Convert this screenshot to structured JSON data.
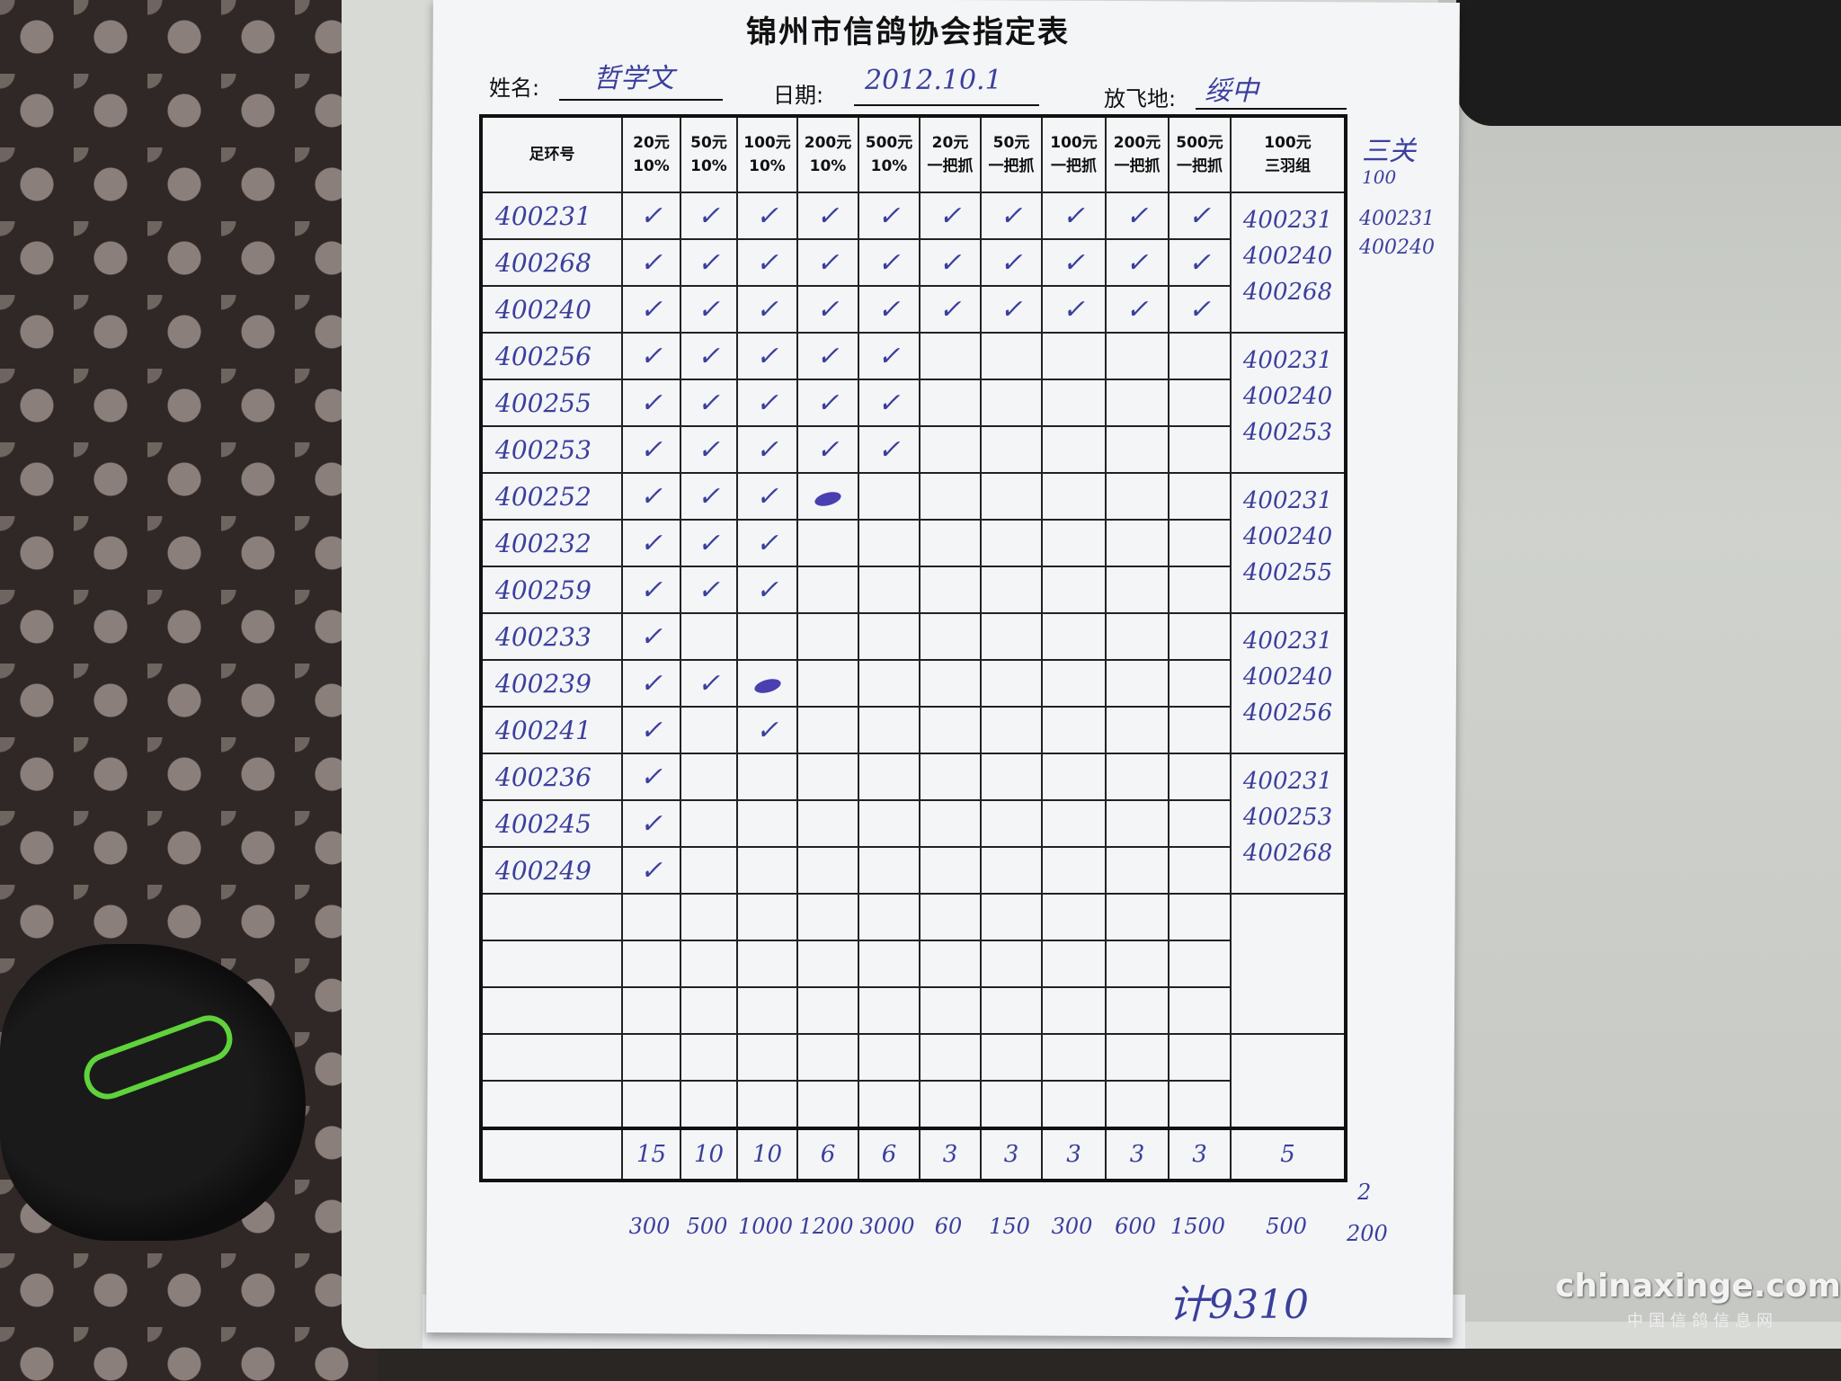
{
  "form": {
    "title": "锦州市信鸽协会指定表",
    "name_label": "姓名:",
    "name_value": "哲学文",
    "date_label": "日期:",
    "date_value": "2012.10.1",
    "release_label": "放飞地:",
    "release_value": "绥中"
  },
  "headers": [
    {
      "line1": "足环号",
      "line2": ""
    },
    {
      "line1": "20元",
      "line2": "10%"
    },
    {
      "line1": "50元",
      "line2": "10%"
    },
    {
      "line1": "100元",
      "line2": "10%"
    },
    {
      "line1": "200元",
      "line2": "10%"
    },
    {
      "line1": "500元",
      "line2": "10%"
    },
    {
      "line1": "20元",
      "line2": "一把抓"
    },
    {
      "line1": "50元",
      "line2": "一把抓"
    },
    {
      "line1": "100元",
      "line2": "一把抓"
    },
    {
      "line1": "200元",
      "line2": "一把抓"
    },
    {
      "line1": "500元",
      "line2": "一把抓"
    },
    {
      "line1": "100元",
      "line2": "三羽组"
    }
  ],
  "check_glyph": "✓",
  "rows": [
    {
      "ring": "400231",
      "marks": [
        "check",
        "check",
        "check",
        "check",
        "check",
        "check",
        "check",
        "check",
        "check",
        "check"
      ]
    },
    {
      "ring": "400268",
      "marks": [
        "check",
        "check",
        "check",
        "check",
        "check",
        "check",
        "check",
        "check",
        "check",
        "check"
      ]
    },
    {
      "ring": "400240",
      "marks": [
        "check",
        "check",
        "check",
        "check",
        "check",
        "check",
        "check",
        "check",
        "check",
        "check"
      ]
    },
    {
      "ring": "400256",
      "marks": [
        "check",
        "check",
        "check",
        "check",
        "check",
        "",
        "",
        "",
        "",
        ""
      ]
    },
    {
      "ring": "400255",
      "marks": [
        "check",
        "check",
        "check",
        "check",
        "check",
        "",
        "",
        "",
        "",
        ""
      ]
    },
    {
      "ring": "400253",
      "marks": [
        "check",
        "check",
        "check",
        "check",
        "check",
        "",
        "",
        "",
        "",
        ""
      ]
    },
    {
      "ring": "400252",
      "marks": [
        "check",
        "check",
        "check",
        "scribble",
        "",
        "",
        "",
        "",
        "",
        ""
      ]
    },
    {
      "ring": "400232",
      "marks": [
        "check",
        "check",
        "check",
        "",
        "",
        "",
        "",
        "",
        "",
        ""
      ]
    },
    {
      "ring": "400259",
      "marks": [
        "check",
        "check",
        "check",
        "",
        "",
        "",
        "",
        "",
        "",
        ""
      ]
    },
    {
      "ring": "400233",
      "marks": [
        "check",
        "",
        "",
        "",
        "",
        "",
        "",
        "",
        "",
        ""
      ]
    },
    {
      "ring": "400239",
      "marks": [
        "check",
        "check",
        "scribble",
        "",
        "",
        "",
        "",
        "",
        "",
        ""
      ]
    },
    {
      "ring": "400241",
      "marks": [
        "check",
        "",
        "check",
        "",
        "",
        "",
        "",
        "",
        "",
        ""
      ]
    },
    {
      "ring": "400236",
      "marks": [
        "check",
        "",
        "",
        "",
        "",
        "",
        "",
        "",
        "",
        ""
      ]
    },
    {
      "ring": "400245",
      "marks": [
        "check",
        "",
        "",
        "",
        "",
        "",
        "",
        "",
        "",
        ""
      ]
    },
    {
      "ring": "400249",
      "marks": [
        "check",
        "",
        "",
        "",
        "",
        "",
        "",
        "",
        "",
        ""
      ]
    }
  ],
  "groups": [
    [
      "400231",
      "400240",
      "400268"
    ],
    [
      "400231",
      "400240",
      "400253"
    ],
    [
      "400231",
      "400240",
      "400255"
    ],
    [
      "400231",
      "400240",
      "400256"
    ],
    [
      "400231",
      "400253",
      "400268"
    ]
  ],
  "sanguan": {
    "title": "三关",
    "subtitle": "100",
    "entries": [
      "400231",
      "400240"
    ],
    "count": "2",
    "amount": "200"
  },
  "totals": {
    "counts": [
      "15",
      "10",
      "10",
      "6",
      "6",
      "3",
      "3",
      "3",
      "3",
      "3",
      "5"
    ],
    "amounts": [
      "300",
      "500",
      "1000",
      "1200",
      "3000",
      "60",
      "150",
      "300",
      "600",
      "1500",
      "500"
    ]
  },
  "grand_total": "计9310",
  "watermark": {
    "main": "chinaxinge.com",
    "sub": "中国信鸽信息网"
  },
  "colors": {
    "ink": "#3b3f9c",
    "paper": "#f4f5f7"
  }
}
